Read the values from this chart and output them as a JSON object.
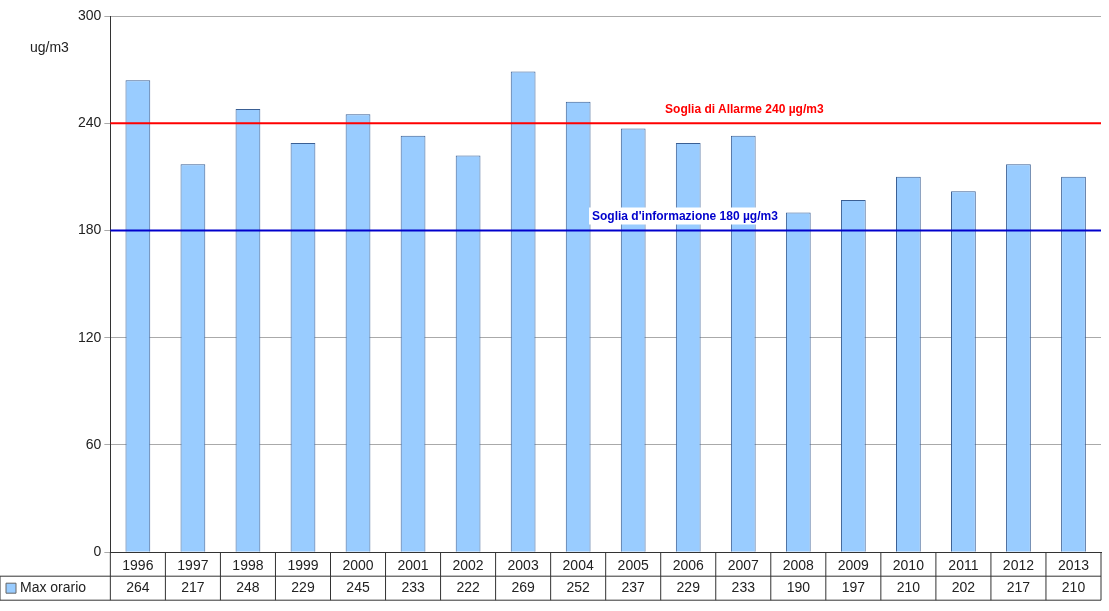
{
  "chart_data": {
    "type": "bar",
    "ylabel": "ug/m3",
    "categories": [
      "1996",
      "1997",
      "1998",
      "1999",
      "2000",
      "2001",
      "2002",
      "2003",
      "2004",
      "2005",
      "2006",
      "2007",
      "2008",
      "2009",
      "2010",
      "2011",
      "2012",
      "2013"
    ],
    "series": [
      {
        "name": "Max orario",
        "color": "#99ccff",
        "values": [
          264,
          217,
          248,
          229,
          245,
          233,
          222,
          269,
          252,
          237,
          229,
          233,
          190,
          197,
          210,
          202,
          217,
          210
        ]
      }
    ],
    "ylim": [
      0,
      300
    ],
    "yticks": [
      0,
      60,
      120,
      180,
      240,
      300
    ],
    "grid": "y",
    "data_labels": true,
    "legend": "bottom",
    "ref_lines": [
      {
        "axis": "y",
        "value": 240,
        "label": "Soglia di Allarme 240 µg/m3",
        "color": "#ff0000"
      },
      {
        "axis": "y",
        "value": 180,
        "label": "Soglia d'informazione 180 µg/m3",
        "color": "#0000cc"
      }
    ]
  }
}
